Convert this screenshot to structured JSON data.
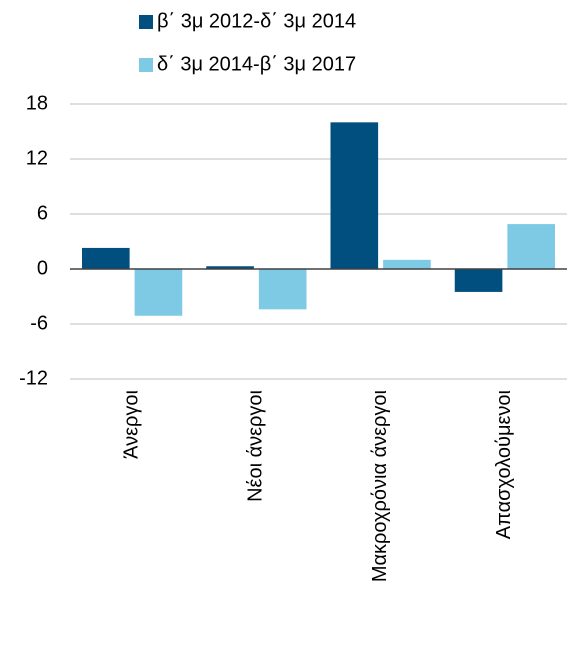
{
  "chart_data": {
    "type": "bar",
    "categories": [
      "Άνεργοι",
      "Νέοι άνεργοι",
      "Μακροχρόνια άνεργοι",
      "Απασχολούμενοι"
    ],
    "series": [
      {
        "name": "β΄ 3μ 2012-δ΄ 3μ 2014",
        "color": "#004f7f",
        "values": [
          2.3,
          0.3,
          16,
          -2.5
        ]
      },
      {
        "name": "δ΄ 3μ 2014-β΄ 3μ 2017",
        "color": "#7ecae5",
        "values": [
          -5.1,
          -4.4,
          1.0,
          4.9
        ]
      }
    ],
    "ylim": [
      -12,
      18
    ],
    "yticks": [
      -12,
      -6,
      0,
      6,
      12,
      18
    ],
    "grid": true
  }
}
